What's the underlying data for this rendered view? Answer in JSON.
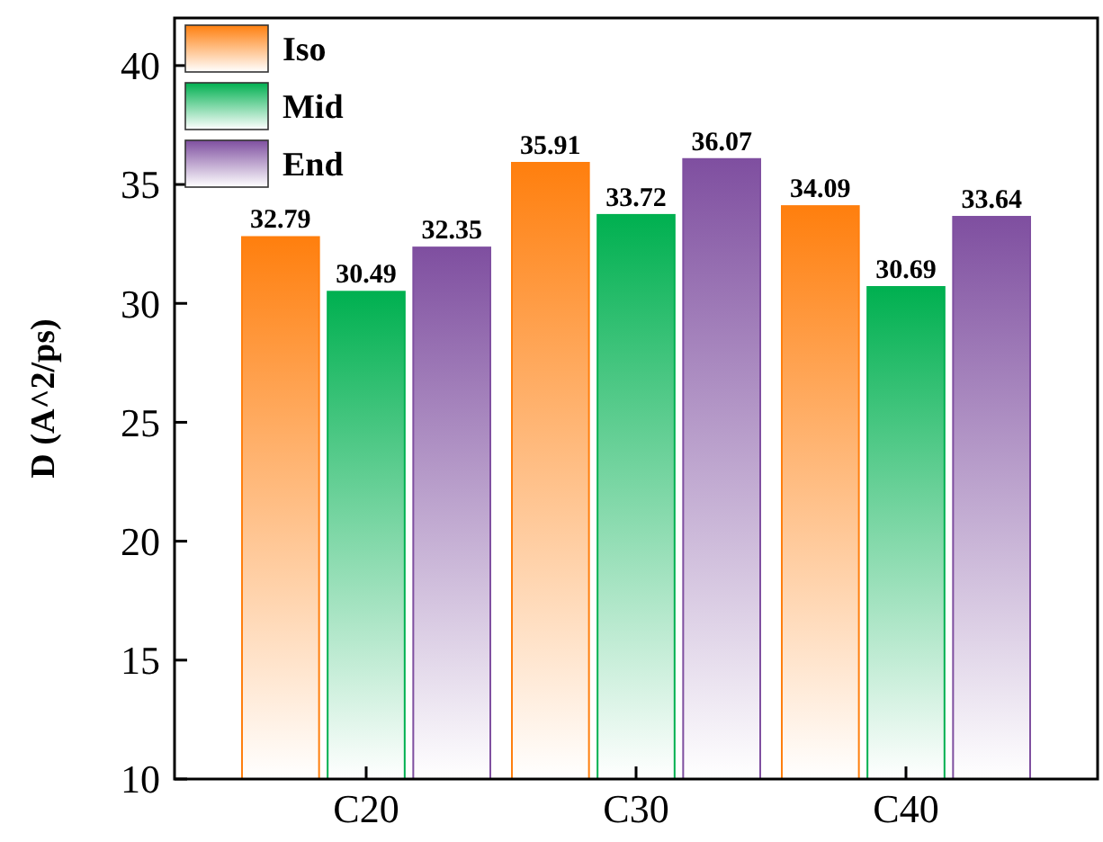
{
  "chart_data": {
    "type": "bar",
    "ylabel": "D (A^2/ps)",
    "categories": [
      "C20",
      "C30",
      "C40"
    ],
    "series": [
      {
        "name": "Iso",
        "color": "#ff7f0e",
        "values": [
          32.79,
          35.91,
          34.09
        ]
      },
      {
        "name": "Mid",
        "color": "#00b050",
        "values": [
          30.49,
          33.72,
          30.69
        ]
      },
      {
        "name": "End",
        "color": "#7f4fa0",
        "values": [
          32.35,
          36.07,
          33.64
        ]
      }
    ],
    "ylim": [
      10,
      42
    ],
    "yticks": [
      10,
      15,
      20,
      25,
      30,
      35,
      40
    ],
    "data_labels": true,
    "legend": "top left",
    "grid": false
  }
}
